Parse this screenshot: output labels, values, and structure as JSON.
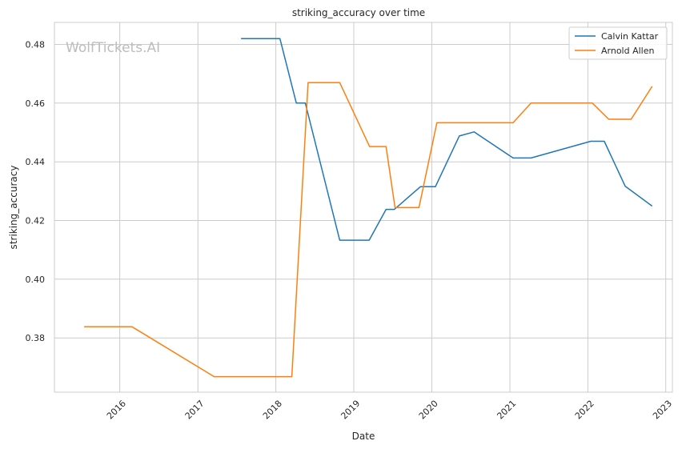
{
  "watermark": "WolfTickets.AI",
  "chart_data": {
    "type": "line",
    "title": "striking_accuracy over time",
    "xlabel": "Date",
    "ylabel": "striking_accuracy",
    "x_axis_type": "date",
    "xlim": [
      "2015-03-01",
      "2023-02-01"
    ],
    "ylim": [
      0.3615,
      0.4875
    ],
    "x_ticks": [
      "2016",
      "2017",
      "2018",
      "2019",
      "2020",
      "2021",
      "2022",
      "2023"
    ],
    "x_tick_dates": [
      "2016-01-01",
      "2017-01-01",
      "2018-01-01",
      "2019-01-01",
      "2020-01-01",
      "2021-01-01",
      "2022-01-01",
      "2023-01-01"
    ],
    "y_ticks": [
      0.38,
      0.4,
      0.42,
      0.44,
      0.46,
      0.48
    ],
    "y_tick_labels": [
      "0.38",
      "0.40",
      "0.42",
      "0.44",
      "0.46",
      "0.48"
    ],
    "grid": true,
    "legend_position": "top-right",
    "series": [
      {
        "name": "Calvin Kattar",
        "color": "#1f77b4",
        "points": [
          [
            "2017-07-22",
            0.482
          ],
          [
            "2018-01-20",
            0.482
          ],
          [
            "2018-04-07",
            0.46
          ],
          [
            "2018-05-19",
            0.46
          ],
          [
            "2018-10-27",
            0.4133
          ],
          [
            "2019-03-14",
            0.4133
          ],
          [
            "2019-06-01",
            0.4238
          ],
          [
            "2019-07-10",
            0.4238
          ],
          [
            "2019-11-09",
            0.4315
          ],
          [
            "2020-01-18",
            0.4315
          ],
          [
            "2020-05-09",
            0.4488
          ],
          [
            "2020-07-17",
            0.4502
          ],
          [
            "2021-01-16",
            0.4413
          ],
          [
            "2021-04-10",
            0.4413
          ],
          [
            "2022-01-15",
            0.447
          ],
          [
            "2022-03-19",
            0.447
          ],
          [
            "2022-06-25",
            0.4317
          ],
          [
            "2022-10-29",
            0.4249
          ]
        ]
      },
      {
        "name": "Arnold Allen",
        "color": "#ff7f0e",
        "points": [
          [
            "2015-07-18",
            0.3838
          ],
          [
            "2016-02-27",
            0.3838
          ],
          [
            "2017-03-18",
            0.3668
          ],
          [
            "2018-03-17",
            0.3668
          ],
          [
            "2018-06-01",
            0.467
          ],
          [
            "2018-10-27",
            0.467
          ],
          [
            "2019-03-16",
            0.4452
          ],
          [
            "2019-06-01",
            0.4452
          ],
          [
            "2019-07-13",
            0.4244
          ],
          [
            "2019-11-02",
            0.4244
          ],
          [
            "2020-01-25",
            0.4533
          ],
          [
            "2021-01-16",
            0.4533
          ],
          [
            "2021-04-10",
            0.46
          ],
          [
            "2022-01-22",
            0.46
          ],
          [
            "2022-04-09",
            0.4545
          ],
          [
            "2022-07-23",
            0.4545
          ],
          [
            "2022-10-29",
            0.4657
          ]
        ]
      }
    ]
  }
}
